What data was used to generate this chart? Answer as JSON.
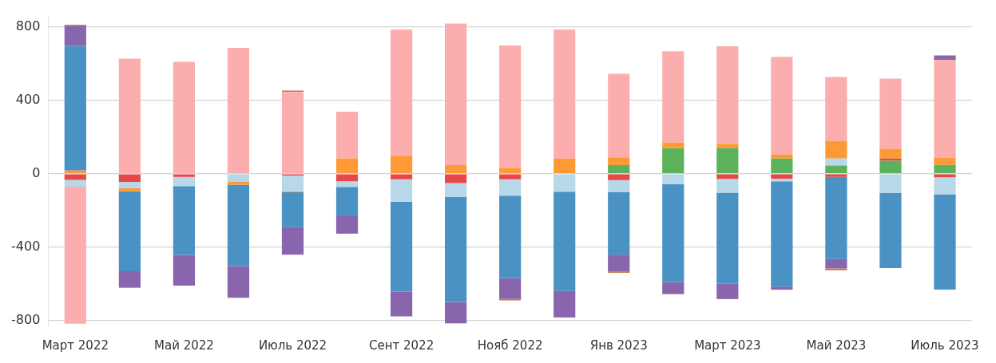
{
  "chart_data": {
    "type": "bar",
    "stacked": true,
    "grid": "y",
    "legend": false,
    "categories": [
      "Март 2022",
      null,
      "Май 2022",
      null,
      "Июль 2022",
      null,
      "Сент 2022",
      null,
      "Нояб 2022",
      null,
      "Янв 2023",
      null,
      "Март 2023",
      null,
      "Май 2023",
      null,
      "Июль 2023"
    ],
    "ylim": [
      -830,
      860
    ],
    "yticks": [
      -800,
      -400,
      0,
      400,
      800
    ],
    "series": [
      {
        "color": "#5cb25a",
        "values": [
          0,
          0,
          0,
          0,
          0,
          0,
          0,
          0,
          0,
          0,
          47,
          139,
          140,
          82,
          44,
          71,
          48
        ]
      },
      {
        "color": "#e8474a",
        "values": [
          -34,
          -44,
          -17,
          0,
          -10,
          -41,
          -30,
          -51,
          -30,
          0,
          -35,
          0,
          -28,
          -27,
          -17,
          11,
          -20
        ]
      },
      {
        "color": "#b8d8ea",
        "values": [
          -37,
          -34,
          -50,
          -44,
          -85,
          -31,
          -122,
          -75,
          -89,
          -98,
          -64,
          -58,
          -75,
          -14,
          38,
          -105,
          -92
        ]
      },
      {
        "color": "#fe9a35",
        "values": [
          17,
          -17,
          0,
          -16,
          -6,
          84,
          98,
          47,
          30,
          81,
          42,
          30,
          23,
          23,
          96,
          54,
          40
        ]
      },
      {
        "color": "#fcaeae",
        "values": [
          -745,
          626,
          609,
          685,
          445,
          253,
          687,
          770,
          668,
          704,
          455,
          497,
          530,
          531,
          348,
          382,
          532
        ]
      },
      {
        "color": "#4a92c4",
        "values": [
          680,
          -436,
          -375,
          -442,
          -190,
          -159,
          -489,
          -572,
          -450,
          -540,
          -341,
          -532,
          -494,
          -573,
          -447,
          -408,
          -518
        ]
      },
      {
        "color": "#8965ae",
        "values": [
          108,
          -86,
          -167,
          -173,
          -149,
          -95,
          -135,
          -116,
          -112,
          -144,
          -91,
          -65,
          -85,
          -17,
          -51,
          0,
          23
        ]
      },
      {
        "color": "#c07a4a",
        "values": [
          6,
          -4,
          0,
          0,
          8,
          0,
          0,
          0,
          -8,
          0,
          -8,
          0,
          0,
          0,
          -10,
          0,
          0
        ]
      }
    ]
  }
}
